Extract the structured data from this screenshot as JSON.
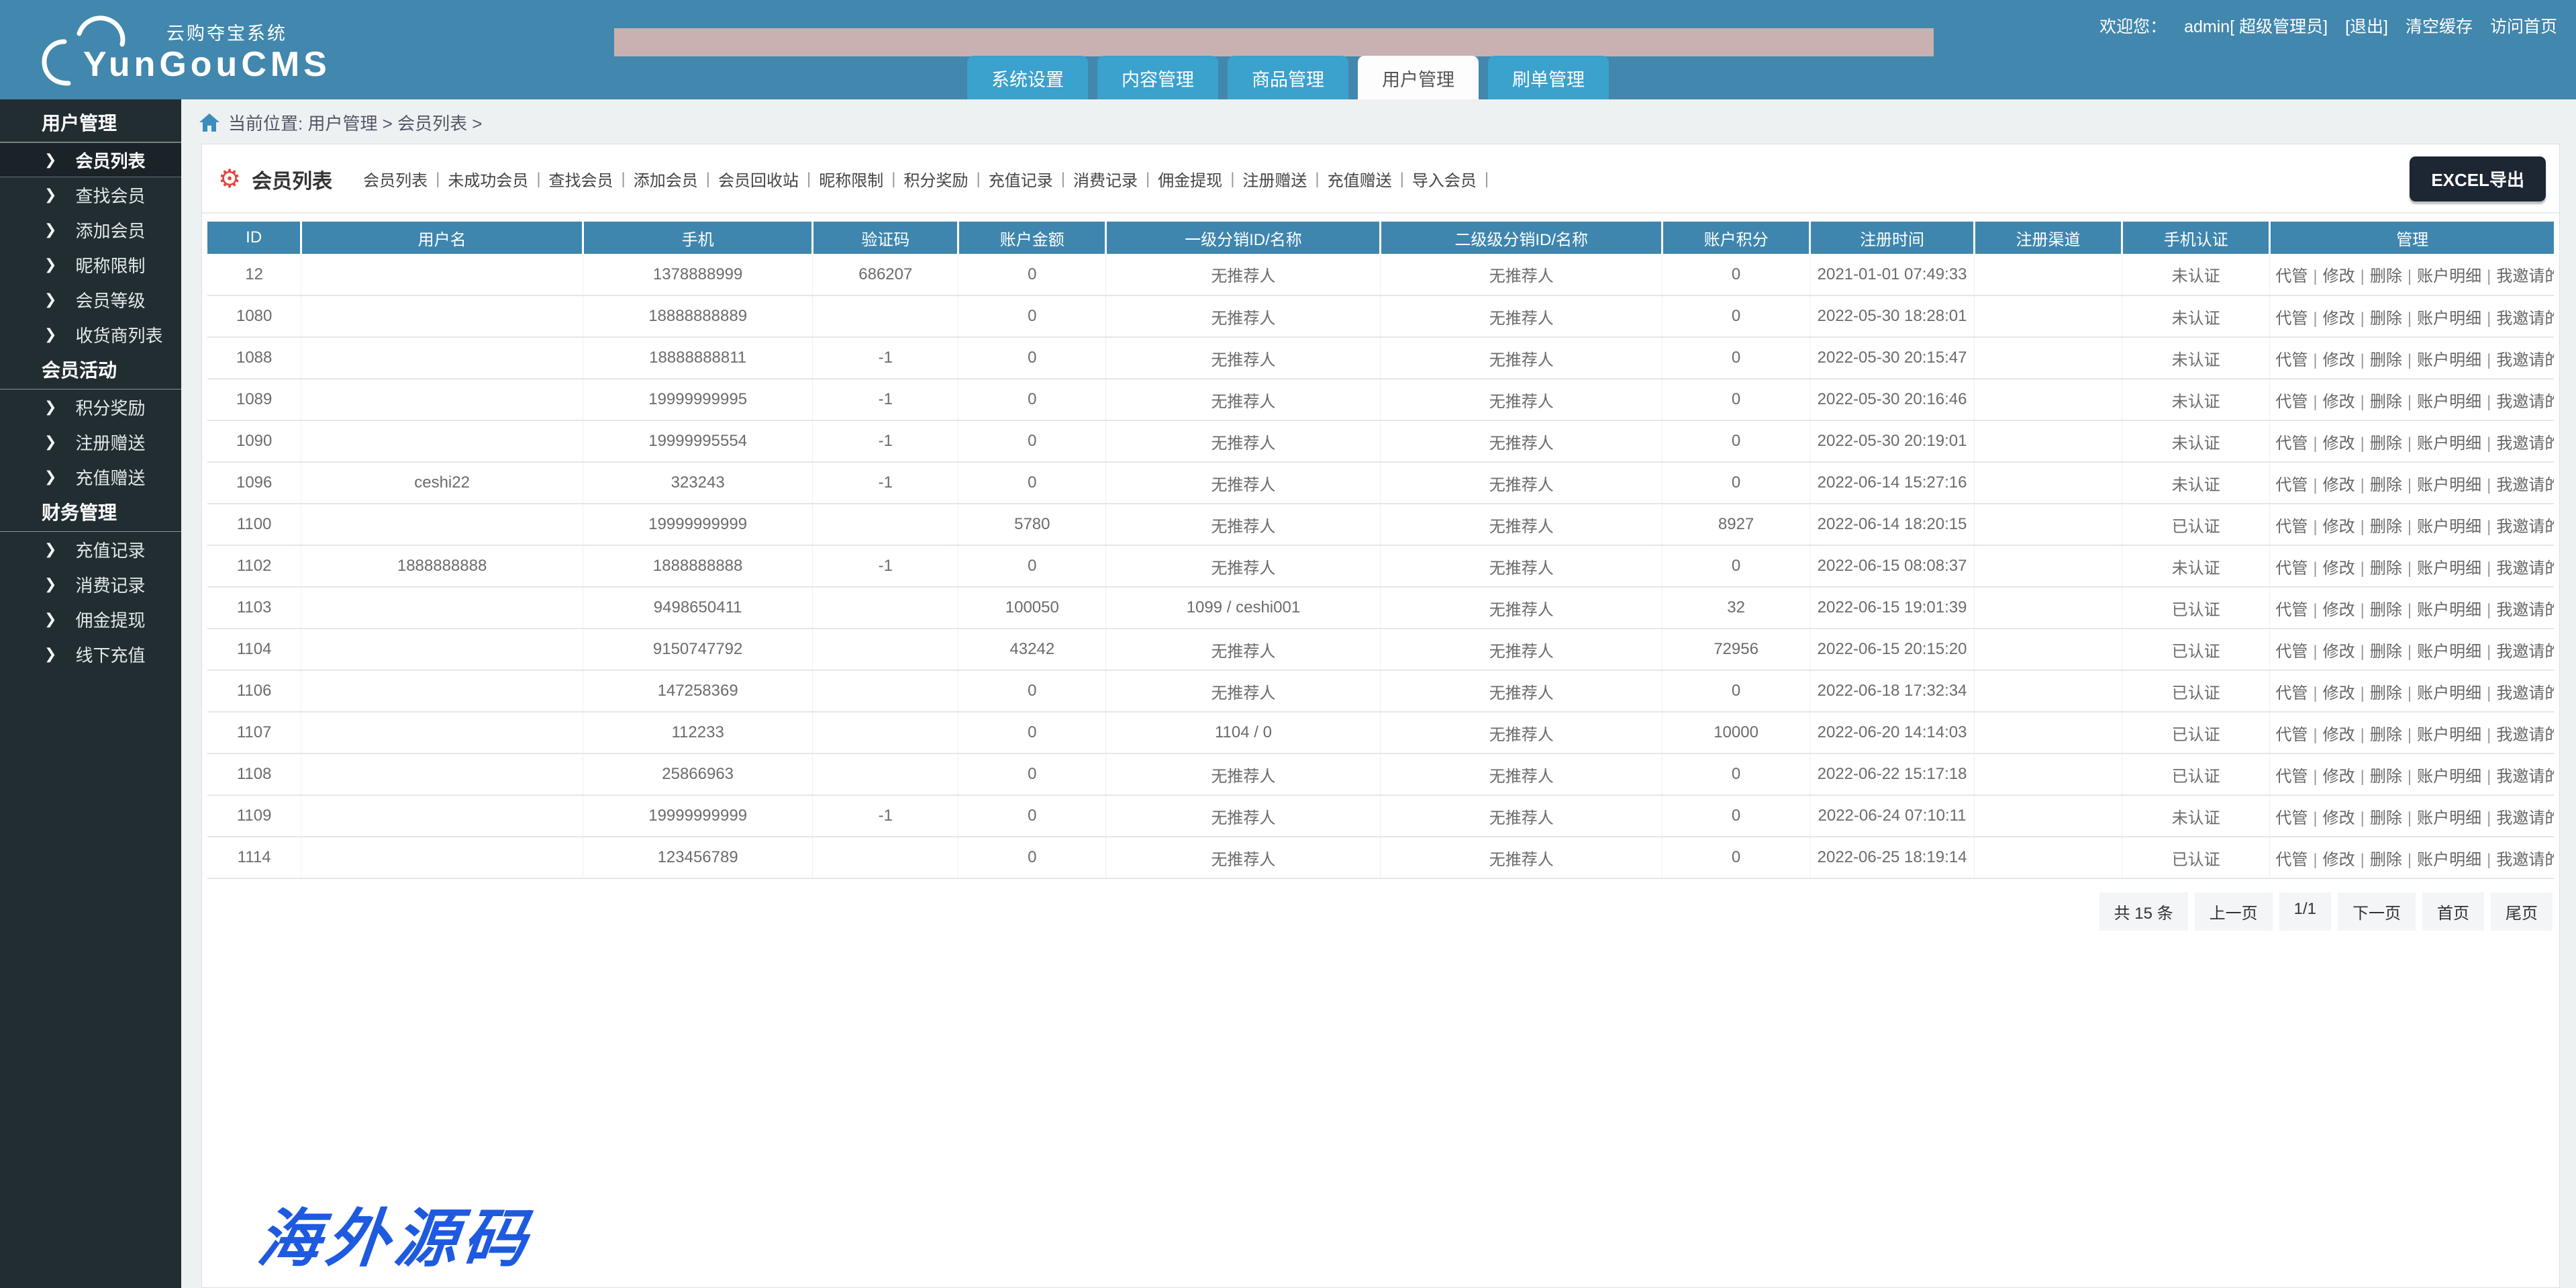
{
  "header": {
    "brand": {
      "name": "YunGouCMS",
      "tagline": "云购夺宝系统"
    },
    "welcome": {
      "label": "欢迎您：",
      "user": "admin[ 超级管理员]",
      "logout": "[退出]",
      "clear_cache": "清空缓存",
      "visit_home": "访问首页"
    },
    "tabs": [
      {
        "label": "系统设置",
        "active": false
      },
      {
        "label": "内容管理",
        "active": false
      },
      {
        "label": "商品管理",
        "active": false
      },
      {
        "label": "用户管理",
        "active": true
      },
      {
        "label": "刷单管理",
        "active": false
      }
    ]
  },
  "sidebar": {
    "sections": [
      {
        "title": "用户管理",
        "items": [
          {
            "label": "会员列表",
            "active": true
          },
          {
            "label": "查找会员",
            "active": false
          },
          {
            "label": "添加会员",
            "active": false
          },
          {
            "label": "昵称限制",
            "active": false
          },
          {
            "label": "会员等级",
            "active": false
          },
          {
            "label": "收货商列表",
            "active": false
          }
        ]
      },
      {
        "title": "会员活动",
        "items": [
          {
            "label": "积分奖励",
            "active": false
          },
          {
            "label": "注册赠送",
            "active": false
          },
          {
            "label": "充值赠送",
            "active": false
          }
        ]
      },
      {
        "title": "财务管理",
        "items": [
          {
            "label": "充值记录",
            "active": false
          },
          {
            "label": "消费记录",
            "active": false
          },
          {
            "label": "佣金提现",
            "active": false
          },
          {
            "label": "线下充值",
            "active": false
          }
        ]
      }
    ]
  },
  "breadcrumb": {
    "text": "当前位置: 用户管理 > 会员列表 >"
  },
  "toolbar": {
    "title": "会员列表",
    "links": [
      "会员列表",
      "未成功会员",
      "查找会员",
      "添加会员",
      "会员回收站",
      "昵称限制",
      "积分奖励",
      "充值记录",
      "消费记录",
      "佣金提现",
      "注册赠送",
      "充值赠送",
      "导入会员"
    ],
    "excel_button": "EXCEL导出"
  },
  "table": {
    "headers": [
      "ID",
      "用户名",
      "手机",
      "验证码",
      "账户金额",
      "一级分销ID/名称",
      "二级级分销ID/名称",
      "账户积分",
      "注册时间",
      "注册渠道",
      "手机认证",
      "管理"
    ],
    "action_links": [
      "代管",
      "修改",
      "删除",
      "账户明细",
      "我邀请的用户"
    ],
    "rows": [
      {
        "id": "12",
        "username": "",
        "phone": "1378888999",
        "code": "686207",
        "balance": "0",
        "ref1": "无推荐人",
        "ref2": "无推荐人",
        "points": "0",
        "reg_time": "2021-01-01 07:49:33",
        "channel": "",
        "verify": "未认证",
        "verified": false
      },
      {
        "id": "1080",
        "username": "",
        "phone": "18888888889",
        "code": "",
        "balance": "0",
        "ref1": "无推荐人",
        "ref2": "无推荐人",
        "points": "0",
        "reg_time": "2022-05-30 18:28:01",
        "channel": "",
        "verify": "未认证",
        "verified": false
      },
      {
        "id": "1088",
        "username": "",
        "phone": "18888888811",
        "code": "-1",
        "balance": "0",
        "ref1": "无推荐人",
        "ref2": "无推荐人",
        "points": "0",
        "reg_time": "2022-05-30 20:15:47",
        "channel": "",
        "verify": "未认证",
        "verified": false
      },
      {
        "id": "1089",
        "username": "",
        "phone": "19999999995",
        "code": "-1",
        "balance": "0",
        "ref1": "无推荐人",
        "ref2": "无推荐人",
        "points": "0",
        "reg_time": "2022-05-30 20:16:46",
        "channel": "",
        "verify": "未认证",
        "verified": false
      },
      {
        "id": "1090",
        "username": "",
        "phone": "19999995554",
        "code": "-1",
        "balance": "0",
        "ref1": "无推荐人",
        "ref2": "无推荐人",
        "points": "0",
        "reg_time": "2022-05-30 20:19:01",
        "channel": "",
        "verify": "未认证",
        "verified": false
      },
      {
        "id": "1096",
        "username": "ceshi22",
        "phone": "323243",
        "code": "-1",
        "balance": "0",
        "ref1": "无推荐人",
        "ref2": "无推荐人",
        "points": "0",
        "reg_time": "2022-06-14 15:27:16",
        "channel": "",
        "verify": "未认证",
        "verified": false
      },
      {
        "id": "1100",
        "username": "",
        "phone": "19999999999",
        "code": "",
        "balance": "5780",
        "ref1": "无推荐人",
        "ref2": "无推荐人",
        "points": "8927",
        "reg_time": "2022-06-14 18:20:15",
        "channel": "",
        "verify": "已认证",
        "verified": true
      },
      {
        "id": "1102",
        "username": "1888888888",
        "phone": "1888888888",
        "code": "-1",
        "balance": "0",
        "ref1": "无推荐人",
        "ref2": "无推荐人",
        "points": "0",
        "reg_time": "2022-06-15 08:08:37",
        "channel": "",
        "verify": "未认证",
        "verified": false
      },
      {
        "id": "1103",
        "username": "",
        "phone": "9498650411",
        "code": "",
        "balance": "100050",
        "ref1": "1099 / ceshi001",
        "ref2": "无推荐人",
        "points": "32",
        "reg_time": "2022-06-15 19:01:39",
        "channel": "",
        "verify": "已认证",
        "verified": true
      },
      {
        "id": "1104",
        "username": "",
        "phone": "9150747792",
        "code": "",
        "balance": "43242",
        "ref1": "无推荐人",
        "ref2": "无推荐人",
        "points": "72956",
        "reg_time": "2022-06-15 20:15:20",
        "channel": "",
        "verify": "已认证",
        "verified": true
      },
      {
        "id": "1106",
        "username": "",
        "phone": "147258369",
        "code": "",
        "balance": "0",
        "ref1": "无推荐人",
        "ref2": "无推荐人",
        "points": "0",
        "reg_time": "2022-06-18 17:32:34",
        "channel": "",
        "verify": "已认证",
        "verified": true
      },
      {
        "id": "1107",
        "username": "",
        "phone": "112233",
        "code": "",
        "balance": "0",
        "ref1": "1104 / 0",
        "ref2": "无推荐人",
        "points": "10000",
        "reg_time": "2022-06-20 14:14:03",
        "channel": "",
        "verify": "已认证",
        "verified": true
      },
      {
        "id": "1108",
        "username": "",
        "phone": "25866963",
        "code": "",
        "balance": "0",
        "ref1": "无推荐人",
        "ref2": "无推荐人",
        "points": "0",
        "reg_time": "2022-06-22 15:17:18",
        "channel": "",
        "verify": "已认证",
        "verified": true
      },
      {
        "id": "1109",
        "username": "",
        "phone": "19999999999",
        "code": "-1",
        "balance": "0",
        "ref1": "无推荐人",
        "ref2": "无推荐人",
        "points": "0",
        "reg_time": "2022-06-24 07:10:11",
        "channel": "",
        "verify": "未认证",
        "verified": false
      },
      {
        "id": "1114",
        "username": "",
        "phone": "123456789",
        "code": "",
        "balance": "0",
        "ref1": "无推荐人",
        "ref2": "无推荐人",
        "points": "0",
        "reg_time": "2022-06-25 18:19:14",
        "channel": "",
        "verify": "已认证",
        "verified": true
      }
    ]
  },
  "pagination": {
    "total": "共 15 条",
    "prev": "上一页",
    "page": "1/1",
    "next": "下一页",
    "first": "首页",
    "last": "尾页"
  },
  "watermark": "海外源码",
  "colors": {
    "header_bg": "#4287ad",
    "tab_bg": "#3ba1cd",
    "tab_active_bg": "#fdfdfd",
    "banner": "#c9b1b1",
    "sidebar_bg": "#222d32",
    "table_header_bg": "#3e86ae",
    "verified_red": "#e23c3c",
    "accent_blue": "#3d8dbc",
    "button_dark": "#1d2733",
    "watermark_blue": "#1e5ae0"
  }
}
